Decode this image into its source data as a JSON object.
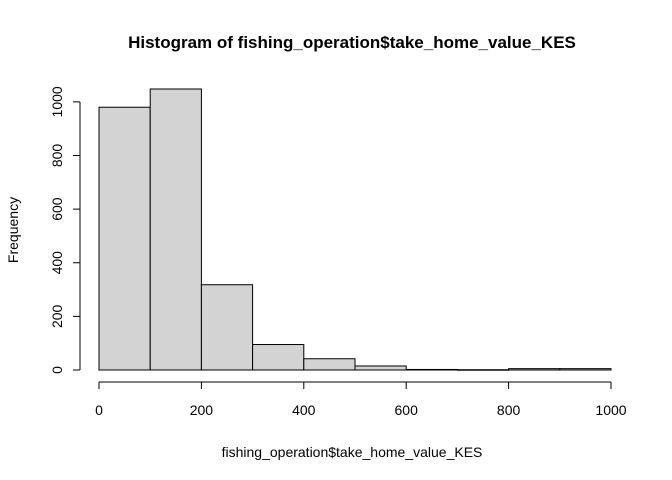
{
  "chart_data": {
    "type": "bar",
    "title": "Histogram of fishing_operation$take_home_value_KES",
    "xlabel": "fishing_operation$take_home_value_KES",
    "ylabel": "Frequency",
    "bins": [
      {
        "start": 0,
        "end": 100,
        "count": 980
      },
      {
        "start": 100,
        "end": 200,
        "count": 1048
      },
      {
        "start": 200,
        "end": 300,
        "count": 318
      },
      {
        "start": 300,
        "end": 400,
        "count": 95
      },
      {
        "start": 400,
        "end": 500,
        "count": 42
      },
      {
        "start": 500,
        "end": 600,
        "count": 15
      },
      {
        "start": 600,
        "end": 700,
        "count": 2
      },
      {
        "start": 700,
        "end": 800,
        "count": 1
      },
      {
        "start": 800,
        "end": 900,
        "count": 5
      },
      {
        "start": 900,
        "end": 1000,
        "count": 5
      }
    ],
    "x_ticks": [
      "0",
      "200",
      "400",
      "600",
      "800",
      "1000"
    ],
    "y_ticks": [
      "0",
      "200",
      "400",
      "600",
      "800",
      "1000"
    ],
    "xlim": [
      0,
      1000
    ],
    "ylim": [
      0,
      1048
    ],
    "grid": false,
    "bar_fill": "#d3d3d3",
    "bar_stroke": "#000000"
  }
}
